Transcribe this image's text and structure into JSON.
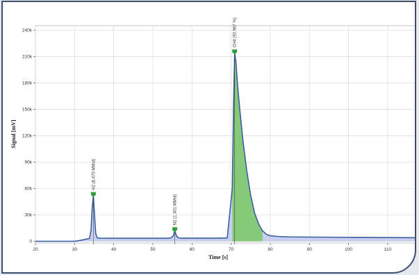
{
  "chart_data": {
    "type": "line",
    "title": "",
    "xlabel": "Time [s]",
    "ylabel": "Signal [mV]",
    "xlim": [
      20,
      118
    ],
    "ylim": [
      -2000,
      245000
    ],
    "x_ticks": [
      20,
      30,
      40,
      50,
      60,
      70,
      80,
      90,
      100,
      110
    ],
    "x_tick_labels": [
      "20",
      "30",
      "40",
      "50",
      "60",
      "70",
      "80",
      "90",
      "100",
      "110"
    ],
    "y_ticks": [
      0,
      30000,
      60000,
      90000,
      120000,
      150000,
      180000,
      210000,
      240000
    ],
    "y_tick_labels": [
      "0",
      "30k",
      "60k",
      "90k",
      "120k",
      "150k",
      "180k",
      "210k",
      "240k"
    ],
    "grid": true,
    "colors": {
      "signal_line": "#3a5fa0",
      "peak_fill": "#7ec86a",
      "baseline_fill": "#c9cfee",
      "marker": "#2e9e3c",
      "grid": "#dcdcdc"
    },
    "series": [
      {
        "x": [
          20,
          30,
          31,
          32,
          33,
          33.8,
          34.2,
          34.5,
          34.8,
          35.1,
          35.4,
          35.8,
          36.5,
          40,
          45,
          50,
          53,
          54.5,
          55.2,
          55.6,
          56,
          56.4,
          56.8,
          57.5,
          60,
          65,
          69,
          70.3,
          70.6,
          70.9,
          71.2,
          71.6,
          72.2,
          73,
          74,
          75,
          76,
          77,
          78,
          79,
          80,
          82,
          85,
          90,
          100,
          110,
          118
        ],
        "y": [
          0,
          0,
          600,
          1500,
          2500,
          3200,
          12000,
          38000,
          52000,
          30000,
          9000,
          3800,
          3600,
          3500,
          3500,
          3500,
          3500,
          3700,
          6000,
          12000,
          6500,
          4200,
          3800,
          3600,
          3600,
          3600,
          3800,
          60000,
          150000,
          214000,
          205000,
          180000,
          150000,
          115000,
          80000,
          52000,
          32000,
          20000,
          12000,
          8000,
          6200,
          5500,
          5000,
          4800,
          4500,
          4300,
          4000
        ]
      }
    ],
    "peak_fill_range": [
      70.3,
      78
    ],
    "peaks": [
      {
        "x": 34.8,
        "y": 52000,
        "label": "H2 (6.470 MMol)"
      },
      {
        "x": 55.6,
        "y": 12000,
        "label": "N2 (1.301 MMol)"
      },
      {
        "x": 70.9,
        "y": 214000,
        "label": "CH4 (92.967 %)"
      }
    ]
  }
}
